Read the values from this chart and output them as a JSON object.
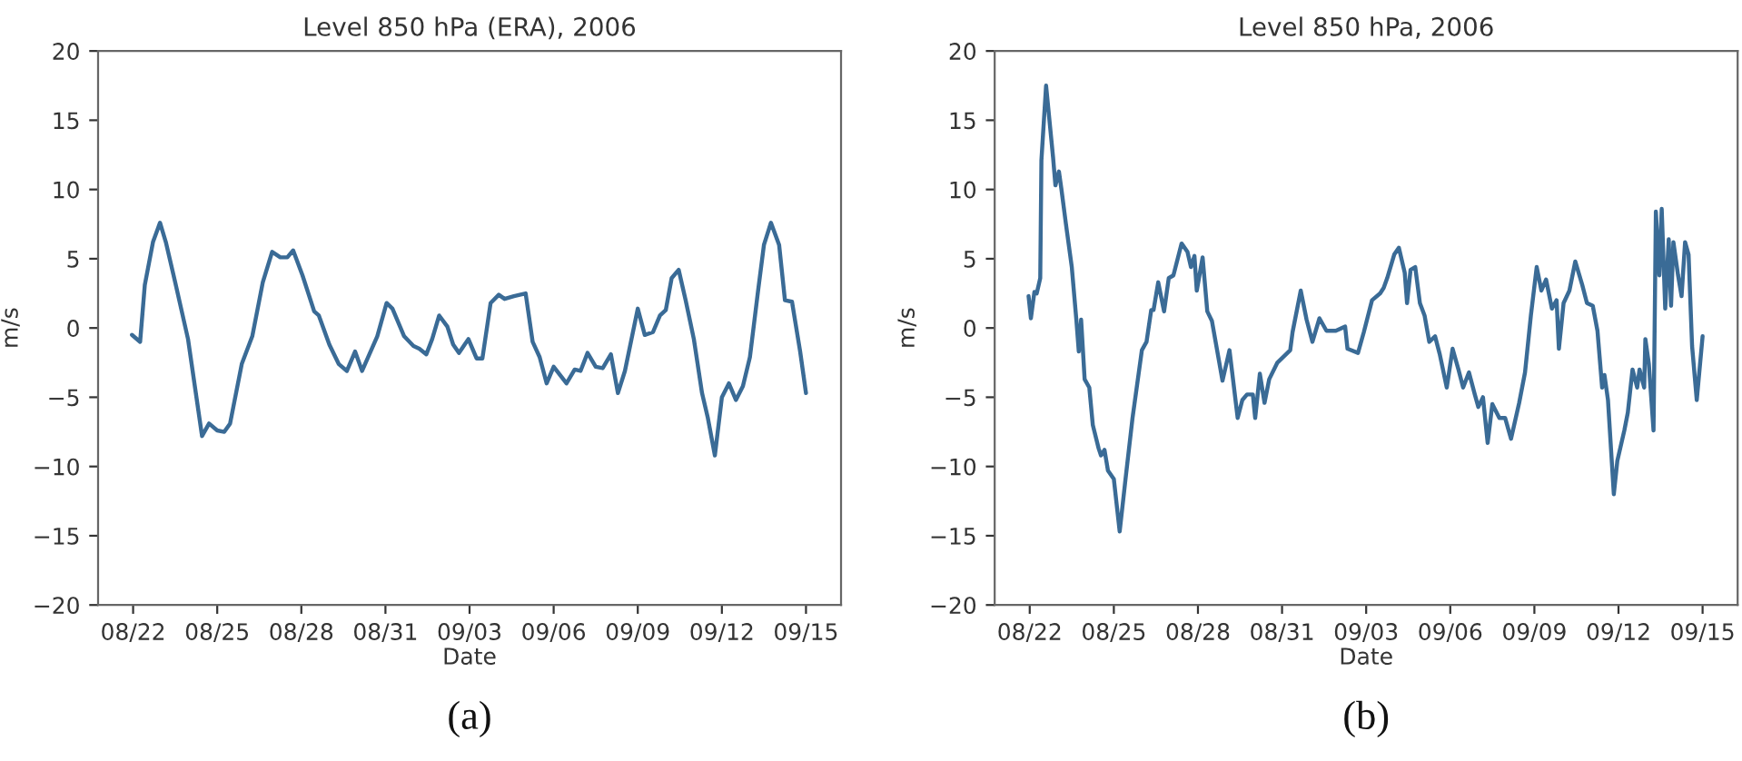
{
  "chart_data": [
    {
      "type": "line",
      "title": "Level 850 hPa (ERA), 2006",
      "xlabel": "Date",
      "ylabel": "m/s",
      "annotations": [
        "(a)"
      ],
      "grid": false,
      "marker": "none",
      "line_style": "solid",
      "xlim": [
        "2006-08-20T18:00",
        "2006-09-16T06:00"
      ],
      "xticks": [
        {
          "value": "2006-08-22",
          "label": "08/22"
        },
        {
          "value": "2006-08-25",
          "label": "08/25"
        },
        {
          "value": "2006-08-28",
          "label": "08/28"
        },
        {
          "value": "2006-08-31",
          "label": "08/31"
        },
        {
          "value": "2006-09-03",
          "label": "09/03"
        },
        {
          "value": "2006-09-06",
          "label": "09/06"
        },
        {
          "value": "2006-09-09",
          "label": "09/09"
        },
        {
          "value": "2006-09-12",
          "label": "09/12"
        },
        {
          "value": "2006-09-15",
          "label": "09/15"
        }
      ],
      "ylim": [
        -20,
        20
      ],
      "yticks": [
        {
          "value": -20,
          "label": "−20"
        },
        {
          "value": -15,
          "label": "−15"
        },
        {
          "value": -10,
          "label": "−10"
        },
        {
          "value": -5,
          "label": "−5"
        },
        0,
        5,
        10,
        15,
        20
      ],
      "series": [
        {
          "color": "#3a6b96",
          "x": [
            "2006-08-21T23:00",
            "2006-08-22T06:00",
            "2006-08-22T10:00",
            "2006-08-22T17:00",
            "2006-08-22T23:00",
            "2006-08-23T04:00",
            "2006-08-23T12:00",
            "2006-08-23T23:00",
            "2006-08-24T11:00",
            "2006-08-24T17:00",
            "2006-08-25T00:00",
            "2006-08-25T06:00",
            "2006-08-25T11:00",
            "2006-08-25T21:00",
            "2006-08-26T06:00",
            "2006-08-26T15:00",
            "2006-08-26T23:00",
            "2006-08-27T06:00",
            "2006-08-27T12:00",
            "2006-08-27T17:00",
            "2006-08-28T01:00",
            "2006-08-28T11:00",
            "2006-08-28T15:00",
            "2006-08-29T00:00",
            "2006-08-29T08:00",
            "2006-08-29T15:00",
            "2006-08-29T22:00",
            "2006-08-30T04:00",
            "2006-08-30T17:00",
            "2006-08-31T01:00",
            "2006-08-31T06:00",
            "2006-08-31T16:00",
            "2006-09-01T00:00",
            "2006-09-01T05:00",
            "2006-09-01T11:00",
            "2006-09-01T16:00",
            "2006-09-01T22:00",
            "2006-09-02T05:00",
            "2006-09-02T10:00",
            "2006-09-02T15:00",
            "2006-09-02T23:00",
            "2006-09-03T06:00",
            "2006-09-03T11:00",
            "2006-09-03T18:00",
            "2006-09-04T01:00",
            "2006-09-04T06:00",
            "2006-09-04T14:00",
            "2006-09-05T00:00",
            "2006-09-05T06:00",
            "2006-09-05T12:00",
            "2006-09-05T18:00",
            "2006-09-06T00:00",
            "2006-09-06T11:00",
            "2006-09-06T18:00",
            "2006-09-06T23:00",
            "2006-09-07T05:00",
            "2006-09-07T12:00",
            "2006-09-07T18:00",
            "2006-09-08T01:00",
            "2006-09-08T07:00",
            "2006-09-08T13:00",
            "2006-09-09T00:00",
            "2006-09-09T06:00",
            "2006-09-09T13:00",
            "2006-09-09T19:00",
            "2006-09-10T00:00",
            "2006-09-10T05:00",
            "2006-09-10T11:00",
            "2006-09-10T17:00",
            "2006-09-11T00:00",
            "2006-09-11T07:00",
            "2006-09-11T12:00",
            "2006-09-11T18:00",
            "2006-09-12T00:00",
            "2006-09-12T06:00",
            "2006-09-12T12:00",
            "2006-09-12T18:00",
            "2006-09-13T00:00",
            "2006-09-13T07:00",
            "2006-09-13T12:00",
            "2006-09-13T18:00",
            "2006-09-14T01:00",
            "2006-09-14T06:00",
            "2006-09-14T12:00",
            "2006-09-14T19:00",
            "2006-09-15T00:00"
          ],
          "values": [
            -0.5,
            -1.0,
            3.1,
            6.2,
            7.6,
            6.2,
            3.3,
            -0.8,
            -7.8,
            -6.9,
            -7.4,
            -7.5,
            -6.9,
            -2.6,
            -0.6,
            3.3,
            5.5,
            5.1,
            5.1,
            5.6,
            3.8,
            1.2,
            0.9,
            -1.2,
            -2.6,
            -3.1,
            -1.7,
            -3.1,
            -0.6,
            1.8,
            1.4,
            -0.6,
            -1.3,
            -1.5,
            -1.9,
            -0.8,
            0.9,
            0.1,
            -1.2,
            -1.8,
            -0.8,
            -2.2,
            -2.2,
            1.8,
            2.4,
            2.1,
            2.3,
            2.5,
            -1.0,
            -2.1,
            -4.0,
            -2.8,
            -4.0,
            -3.0,
            -3.1,
            -1.8,
            -2.8,
            -2.9,
            -1.9,
            -4.7,
            -3.1,
            1.4,
            -0.5,
            -0.3,
            0.9,
            1.3,
            3.6,
            4.2,
            2.0,
            -0.8,
            -4.7,
            -6.5,
            -9.2,
            -5.0,
            -4.0,
            -5.2,
            -4.2,
            -2.1,
            2.7,
            6.0,
            7.6,
            6.0,
            2.0,
            1.9,
            -1.7,
            -4.7
          ]
        }
      ]
    },
    {
      "type": "line",
      "title": "Level 850 hPa, 2006",
      "xlabel": "Date",
      "ylabel": "m/s",
      "annotations": [
        "(b)"
      ],
      "grid": false,
      "marker": "none",
      "line_style": "solid",
      "xlim": [
        "2006-08-20T18:00",
        "2006-09-16T06:00"
      ],
      "xticks": [
        {
          "value": "2006-08-22",
          "label": "08/22"
        },
        {
          "value": "2006-08-25",
          "label": "08/25"
        },
        {
          "value": "2006-08-28",
          "label": "08/28"
        },
        {
          "value": "2006-08-31",
          "label": "08/31"
        },
        {
          "value": "2006-09-03",
          "label": "09/03"
        },
        {
          "value": "2006-09-06",
          "label": "09/06"
        },
        {
          "value": "2006-09-09",
          "label": "09/09"
        },
        {
          "value": "2006-09-12",
          "label": "09/12"
        },
        {
          "value": "2006-09-15",
          "label": "09/15"
        }
      ],
      "ylim": [
        -20,
        20
      ],
      "yticks": [
        {
          "value": -20,
          "label": "−20"
        },
        {
          "value": -15,
          "label": "−15"
        },
        {
          "value": -10,
          "label": "−10"
        },
        {
          "value": -5,
          "label": "−5"
        },
        0,
        5,
        10,
        15,
        20
      ],
      "series": [
        {
          "color": "#3a6b96",
          "x": [
            "2006-08-21T23:00",
            "2006-08-22T01:00",
            "2006-08-22T04:00",
            "2006-08-22T06:00",
            "2006-08-22T09:00",
            "2006-08-22T10:00",
            "2006-08-22T14:00",
            "2006-08-22T17:00",
            "2006-08-22T20:00",
            "2006-08-22T22:00",
            "2006-08-23T01:00",
            "2006-08-23T03:00",
            "2006-08-23T07:00",
            "2006-08-23T12:00",
            "2006-08-23T16:00",
            "2006-08-23T18:00",
            "2006-08-23T20:00",
            "2006-08-23T23:00",
            "2006-08-24T03:00",
            "2006-08-24T06:00",
            "2006-08-24T11:00",
            "2006-08-24T13:00",
            "2006-08-24T16:00",
            "2006-08-24T19:00",
            "2006-08-25T00:00",
            "2006-08-25T05:00",
            "2006-08-25T10:00",
            "2006-08-25T16:00",
            "2006-08-26T00:00",
            "2006-08-26T04:00",
            "2006-08-26T08:00",
            "2006-08-26T10:00",
            "2006-08-26T14:00",
            "2006-08-26T19:00",
            "2006-08-26T23:00",
            "2006-08-27T03:00",
            "2006-08-27T10:00",
            "2006-08-27T15:00",
            "2006-08-27T18:00",
            "2006-08-27T21:00",
            "2006-08-27T23:00",
            "2006-08-28T04:00",
            "2006-08-28T08:00",
            "2006-08-28T12:00",
            "2006-08-28T21:00",
            "2006-08-29T03:00",
            "2006-08-29T10:00",
            "2006-08-29T14:00",
            "2006-08-29T18:00",
            "2006-08-29T23:00",
            "2006-08-30T01:00",
            "2006-08-30T05:00",
            "2006-08-30T09:00",
            "2006-08-30T13:00",
            "2006-08-30T20:00",
            "2006-08-31T07:00",
            "2006-08-31T09:00",
            "2006-08-31T16:00",
            "2006-08-31T21:00",
            "2006-09-01T02:00",
            "2006-09-01T08:00",
            "2006-09-01T14:00",
            "2006-09-01T22:00",
            "2006-09-02T06:00",
            "2006-09-02T08:00",
            "2006-09-02T17:00",
            "2006-09-02T22:00",
            "2006-09-03T05:00",
            "2006-09-03T12:00",
            "2006-09-03T15:00",
            "2006-09-03T18:00",
            "2006-09-04T00:00",
            "2006-09-04T04:00",
            "2006-09-04T09:00",
            "2006-09-04T11:00",
            "2006-09-04T14:00",
            "2006-09-04T18:00",
            "2006-09-04T22:00",
            "2006-09-05T02:00",
            "2006-09-05T06:00",
            "2006-09-05T11:00",
            "2006-09-05T15:00",
            "2006-09-05T21:00",
            "2006-09-06T02:00",
            "2006-09-06T07:00",
            "2006-09-06T11:00",
            "2006-09-06T16:00",
            "2006-09-06T21:00",
            "2006-09-07T00:00",
            "2006-09-07T04:00",
            "2006-09-07T08:00",
            "2006-09-07T12:00",
            "2006-09-07T18:00",
            "2006-09-07T23:00",
            "2006-09-08T04:00",
            "2006-09-08T11:00",
            "2006-09-08T16:00",
            "2006-09-08T21:00",
            "2006-09-09T02:00",
            "2006-09-09T06:00",
            "2006-09-09T10:00",
            "2006-09-09T15:00",
            "2006-09-09T19:00",
            "2006-09-09T21:00",
            "2006-09-10T01:00",
            "2006-09-10T06:00",
            "2006-09-10T11:00",
            "2006-09-10T17:00",
            "2006-09-10T21:00",
            "2006-09-11T02:00",
            "2006-09-11T06:00",
            "2006-09-11T10:00",
            "2006-09-11T12:00",
            "2006-09-11T15:00",
            "2006-09-11T20:00",
            "2006-09-11T23:00",
            "2006-09-12T05:00",
            "2006-09-12T08:00",
            "2006-09-12T12:00",
            "2006-09-12T16:00",
            "2006-09-12T18:00",
            "2006-09-12T22:00",
            "2006-09-12T23:00",
            "2006-09-13T02:00",
            "2006-09-13T06:00",
            "2006-09-13T08:00",
            "2006-09-13T11:00",
            "2006-09-13T13:00",
            "2006-09-13T16:00",
            "2006-09-13T19:00",
            "2006-09-13T21:00",
            "2006-09-13T23:00",
            "2006-09-14T03:00",
            "2006-09-14T06:00",
            "2006-09-14T09:00",
            "2006-09-14T12:00",
            "2006-09-14T15:00",
            "2006-09-14T19:00",
            "2006-09-15T00:00"
          ],
          "values": [
            2.3,
            0.7,
            2.6,
            2.5,
            3.6,
            12.1,
            17.5,
            14.9,
            12.3,
            10.3,
            11.3,
            10.1,
            7.5,
            4.4,
            0.5,
            -1.7,
            0.6,
            -3.7,
            -4.3,
            -7.0,
            -8.7,
            -9.2,
            -8.8,
            -10.3,
            -10.9,
            -14.7,
            -10.9,
            -6.5,
            -1.6,
            -1.0,
            1.3,
            1.3,
            3.3,
            1.2,
            3.6,
            3.8,
            6.1,
            5.5,
            4.4,
            5.2,
            2.7,
            5.1,
            1.2,
            0.5,
            -3.8,
            -1.6,
            -6.5,
            -5.2,
            -4.8,
            -4.8,
            -6.5,
            -3.3,
            -5.4,
            -3.7,
            -2.5,
            -1.6,
            -0.3,
            2.7,
            0.6,
            -1.0,
            0.7,
            -0.2,
            -0.2,
            0.1,
            -1.5,
            -1.8,
            -0.3,
            2.0,
            2.5,
            2.9,
            3.6,
            5.3,
            5.8,
            4.0,
            1.8,
            4.2,
            4.4,
            1.8,
            0.9,
            -1.0,
            -0.6,
            -1.9,
            -4.3,
            -1.5,
            -3.0,
            -4.3,
            -3.2,
            -4.8,
            -5.7,
            -5.0,
            -8.3,
            -5.5,
            -6.5,
            -6.5,
            -8.0,
            -5.4,
            -3.2,
            0.9,
            4.4,
            2.7,
            3.5,
            1.4,
            2.0,
            -1.5,
            1.8,
            2.7,
            4.8,
            3.1,
            1.8,
            1.6,
            -0.2,
            -4.3,
            -3.4,
            -5.2,
            -12.0,
            -9.6,
            -7.4,
            -6.1,
            -3.0,
            -4.3,
            -3.0,
            -4.3,
            -0.8,
            -2.6,
            -7.4,
            8.4,
            3.8,
            8.6,
            1.4,
            6.4,
            1.6,
            6.2,
            3.8,
            2.3,
            6.2,
            5.3,
            -1.3,
            -5.2,
            -0.6
          ]
        }
      ]
    }
  ]
}
